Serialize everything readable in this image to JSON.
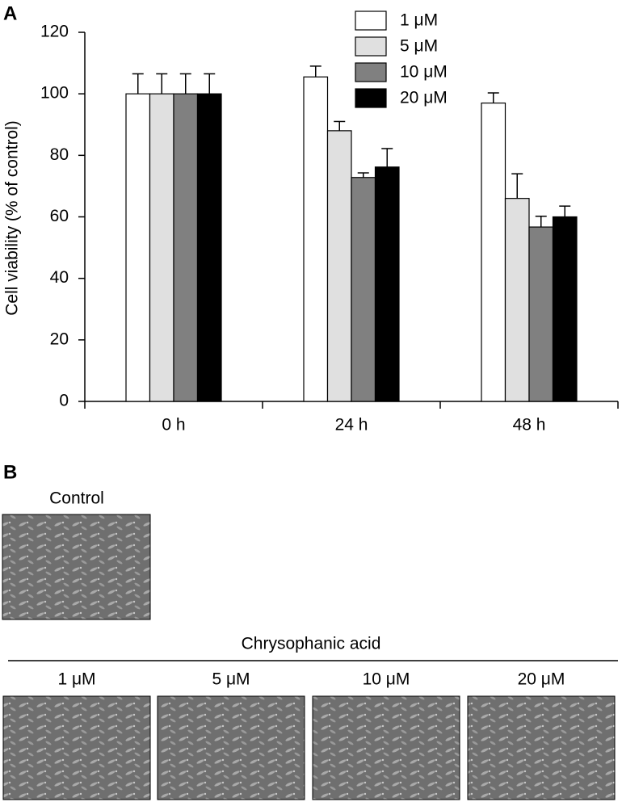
{
  "chart_data": {
    "type": "bar",
    "y_label": "Cell viability (% of control)",
    "categories": [
      "0 h",
      "24 h",
      "48 h"
    ],
    "series": [
      {
        "name": "1 μM",
        "color": "#ffffff",
        "values": [
          100,
          105.5,
          97
        ],
        "errors": [
          6.5,
          3.5,
          3.3
        ]
      },
      {
        "name": "5 μM",
        "color": "#e0e0e0",
        "values": [
          100,
          88,
          66
        ],
        "errors": [
          6.5,
          3,
          8
        ]
      },
      {
        "name": "10 μM",
        "color": "#808080",
        "values": [
          100,
          72.8,
          56.7
        ],
        "errors": [
          6.5,
          1.5,
          3.5
        ]
      },
      {
        "name": "20 μM",
        "color": "#000000",
        "values": [
          100,
          76.2,
          60
        ],
        "errors": [
          6.5,
          6,
          3.5
        ]
      }
    ],
    "ylim": [
      0,
      120
    ],
    "yticks": [
      0,
      20,
      40,
      60,
      80,
      100,
      120
    ],
    "grid": false
  },
  "panel_labels": [
    "A",
    "B"
  ],
  "panel_b": {
    "control_label": "Control",
    "treatment_label": "Chrysophanic acid",
    "concentrations": [
      "1 μM",
      "5 μM",
      "10 μM",
      "20 μM"
    ]
  }
}
